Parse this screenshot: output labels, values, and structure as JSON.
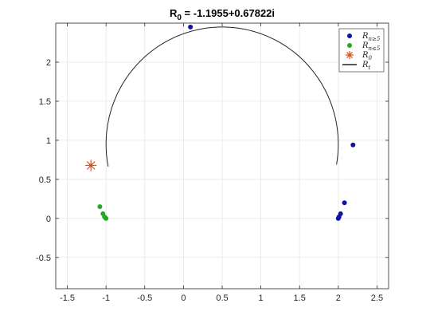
{
  "chart_data": {
    "type": "scatter",
    "title": "R",
    "title_sub": "0",
    "title_rest": " = -1.1955+0.67822i",
    "xlabel": "",
    "ylabel": "",
    "xlim": [
      -1.65,
      2.65
    ],
    "ylim": [
      -0.9,
      2.5
    ],
    "xticks": [
      -1.5,
      -1,
      -0.5,
      0,
      0.5,
      1,
      1.5,
      2,
      2.5
    ],
    "xtick_labels": [
      "-1.5",
      "-1",
      "-0.5",
      "0",
      "0.5",
      "1",
      "1.5",
      "2",
      "2.5"
    ],
    "yticks": [
      -0.5,
      0,
      0.5,
      1,
      1.5,
      2
    ],
    "ytick_labels": [
      "-0.5",
      "0",
      "0.5",
      "1",
      "1.5",
      "2"
    ],
    "grid": true,
    "legend_position": "top-right",
    "series": [
      {
        "name": "R_{n≥5}",
        "legend_label": "R",
        "legend_sub": "n≥5",
        "marker": "circle",
        "color": "#1111aa",
        "points": [
          [
            0.09,
            2.45
          ],
          [
            2.19,
            0.94
          ],
          [
            2.08,
            0.2
          ],
          [
            2.03,
            0.06
          ],
          [
            2.01,
            0.02
          ],
          [
            2.0,
            0.0
          ]
        ]
      },
      {
        "name": "R_{n≤5}",
        "legend_label": "R",
        "legend_sub": "n≤5",
        "marker": "circle",
        "color": "#22aa22",
        "points": [
          [
            -1.08,
            0.15
          ],
          [
            -1.04,
            0.06
          ],
          [
            -1.02,
            0.02
          ],
          [
            -1.01,
            0.01
          ],
          [
            -1.0,
            0.0
          ]
        ]
      },
      {
        "name": "R_0",
        "legend_label": "R",
        "legend_sub": "0",
        "marker": "star",
        "color": "#d95319",
        "points": [
          [
            -1.1955,
            0.67822
          ]
        ]
      },
      {
        "name": "R_t",
        "legend_label": "R",
        "legend_sub": "t",
        "marker": "line",
        "color": "#222222",
        "arc": {
          "center": [
            0.5,
            0.95
          ],
          "radius": 1.5,
          "start_deg": -10,
          "end_deg": 191
        }
      }
    ]
  }
}
